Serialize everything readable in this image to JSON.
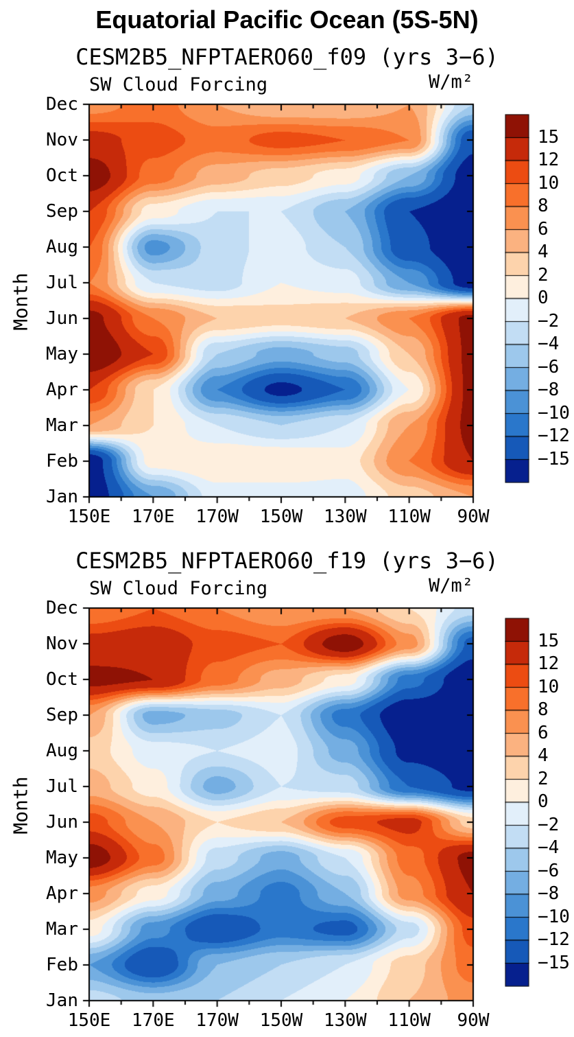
{
  "title": "Equatorial Pacific Ocean (5S-5N)",
  "colorbar": {
    "labels_top_to_bottom": [
      "15",
      "12",
      "10",
      "8",
      "6",
      "4",
      "2",
      "0",
      "−2",
      "−4",
      "−6",
      "−8",
      "−10",
      "−12",
      "−15"
    ],
    "levels_low_to_high": [
      -15,
      -12,
      -10,
      -8,
      -6,
      -4,
      -2,
      0,
      2,
      4,
      6,
      8,
      10,
      12,
      15
    ],
    "colors_low_to_high": [
      "#06208E",
      "#1659B8",
      "#2A77CB",
      "#4B92D6",
      "#74AEE2",
      "#9DC8EC",
      "#C2DDF4",
      "#E2EFFA",
      "#FEEFDE",
      "#FDD3AC",
      "#FBB280",
      "#FA9150",
      "#F8702B",
      "#EC4C12",
      "#C62A0A",
      "#8F1205"
    ]
  },
  "chart_data": [
    {
      "type": "heatmap",
      "title": "CESM2B5_NFPTAERO60_f09 (yrs 3−6)",
      "subtitle_left": "SW Cloud Forcing",
      "units": "W/m²",
      "ylabel": "Month",
      "x_ticks": [
        "150E",
        "170E",
        "170W",
        "150W",
        "130W",
        "110W",
        "90W"
      ],
      "x_degrees_east": [
        150,
        170,
        190,
        210,
        230,
        250,
        270
      ],
      "y_ticks_bottom_to_top": [
        "Jan",
        "Feb",
        "Mar",
        "Apr",
        "May",
        "Jun",
        "Jul",
        "Aug",
        "Sep",
        "Oct",
        "Nov",
        "Dec"
      ],
      "grid_rows_jan_to_dec": [
        [
          -17,
          -8,
          -1,
          -1,
          -1,
          3,
          6
        ],
        [
          -17,
          1,
          2,
          2,
          1,
          8,
          15
        ],
        [
          6,
          2,
          -2,
          -4,
          -2,
          6,
          16
        ],
        [
          12,
          2,
          -10,
          -16,
          -12,
          0,
          16
        ],
        [
          18,
          12,
          -4,
          -7,
          -5,
          4,
          16
        ],
        [
          16,
          8,
          4,
          3,
          4,
          8,
          16
        ],
        [
          8,
          -2,
          -3,
          0,
          -1,
          -8,
          -17
        ],
        [
          10,
          -9,
          -3,
          -1,
          -4,
          -14,
          -18
        ],
        [
          12,
          1,
          -2,
          -2,
          -6,
          -15,
          -18
        ],
        [
          17,
          9,
          5,
          3,
          1,
          -6,
          -17
        ],
        [
          13,
          11,
          9,
          11,
          10,
          8,
          -14
        ],
        [
          7,
          9,
          6,
          4,
          4,
          6,
          -4
        ]
      ]
    },
    {
      "type": "heatmap",
      "title": "CESM2B5_NFPTAERO60_f19 (yrs 3−6)",
      "subtitle_left": "SW Cloud Forcing",
      "units": "W/m²",
      "ylabel": "Month",
      "x_ticks": [
        "150E",
        "170E",
        "170W",
        "150W",
        "130W",
        "110W",
        "90W"
      ],
      "x_degrees_east": [
        150,
        170,
        190,
        210,
        230,
        250,
        270
      ],
      "y_ticks_bottom_to_top": [
        "Jan",
        "Feb",
        "Mar",
        "Apr",
        "May",
        "Jun",
        "Jul",
        "Aug",
        "Sep",
        "Oct",
        "Nov",
        "Dec"
      ],
      "grid_rows_jan_to_dec": [
        [
          -3,
          -5,
          -4,
          -2,
          0,
          4,
          7
        ],
        [
          -8,
          -15,
          -6,
          -4,
          -2,
          3,
          9
        ],
        [
          1,
          -9,
          -15,
          -11,
          -13,
          -3,
          11
        ],
        [
          7,
          1,
          -7,
          -11,
          -6,
          7,
          15
        ],
        [
          17,
          9,
          -3,
          -7,
          -2,
          9,
          16
        ],
        [
          11,
          6,
          2,
          4,
          11,
          13,
          3
        ],
        [
          5,
          1,
          -7,
          -2,
          -3,
          -12,
          -16
        ],
        [
          3,
          -1,
          -2,
          -1,
          -7,
          -16,
          -18
        ],
        [
          6,
          -7,
          -5,
          -2,
          -11,
          -18,
          -18
        ],
        [
          16,
          15,
          9,
          5,
          1,
          -11,
          -18
        ],
        [
          13,
          14,
          11,
          10,
          17,
          7,
          -13
        ],
        [
          8,
          10,
          8,
          6,
          6,
          2,
          -3
        ]
      ]
    }
  ]
}
